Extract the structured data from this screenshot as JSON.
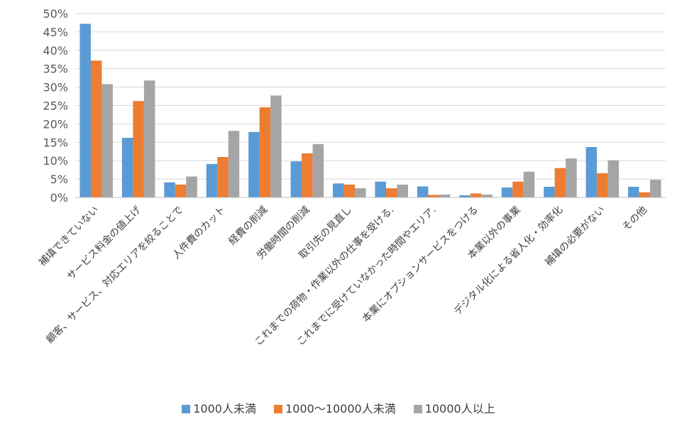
{
  "chart_data": {
    "type": "bar",
    "title": "",
    "xlabel": "",
    "ylabel": "",
    "ylim": [
      0,
      50
    ],
    "yticks": [
      "0%",
      "5%",
      "10%",
      "15%",
      "20%",
      "25%",
      "30%",
      "35%",
      "40%",
      "45%",
      "50%"
    ],
    "grid": true,
    "legend_position": "bottom",
    "categories": [
      "補填できていない",
      "サービス料金の値上げ",
      "顧客、サービス、対応エリアを絞ることで",
      "人件費のカット",
      "経費の削減",
      "労働時間の削減",
      "取引先の見直し",
      "これまでの荷物・作業以外の仕事を受ける.",
      "これまでに受けていなかった時間やエリア.",
      "本業にオプションサービスをつける",
      "本業以外の事業",
      "デジタル化による省人化・効率化",
      "補填の必要がない",
      "その他"
    ],
    "series": [
      {
        "name": "1000人未満",
        "color": "#5B9BD5",
        "values": [
          47.2,
          16.2,
          4.1,
          9.1,
          17.8,
          9.8,
          3.8,
          4.3,
          3.0,
          0.6,
          2.7,
          2.9,
          13.7,
          2.9
        ]
      },
      {
        "name": "1000～10000人未満",
        "color": "#ED7D31",
        "values": [
          37.2,
          26.2,
          3.5,
          11.0,
          24.5,
          12.0,
          3.5,
          2.5,
          0.7,
          1.1,
          4.3,
          8.0,
          6.6,
          1.4
        ]
      },
      {
        "name": "10000人以上",
        "color": "#A5A5A5",
        "values": [
          30.8,
          31.8,
          5.7,
          18.1,
          27.7,
          14.5,
          2.5,
          3.5,
          0.8,
          0.8,
          7.0,
          10.6,
          10.1,
          4.8
        ]
      }
    ]
  }
}
